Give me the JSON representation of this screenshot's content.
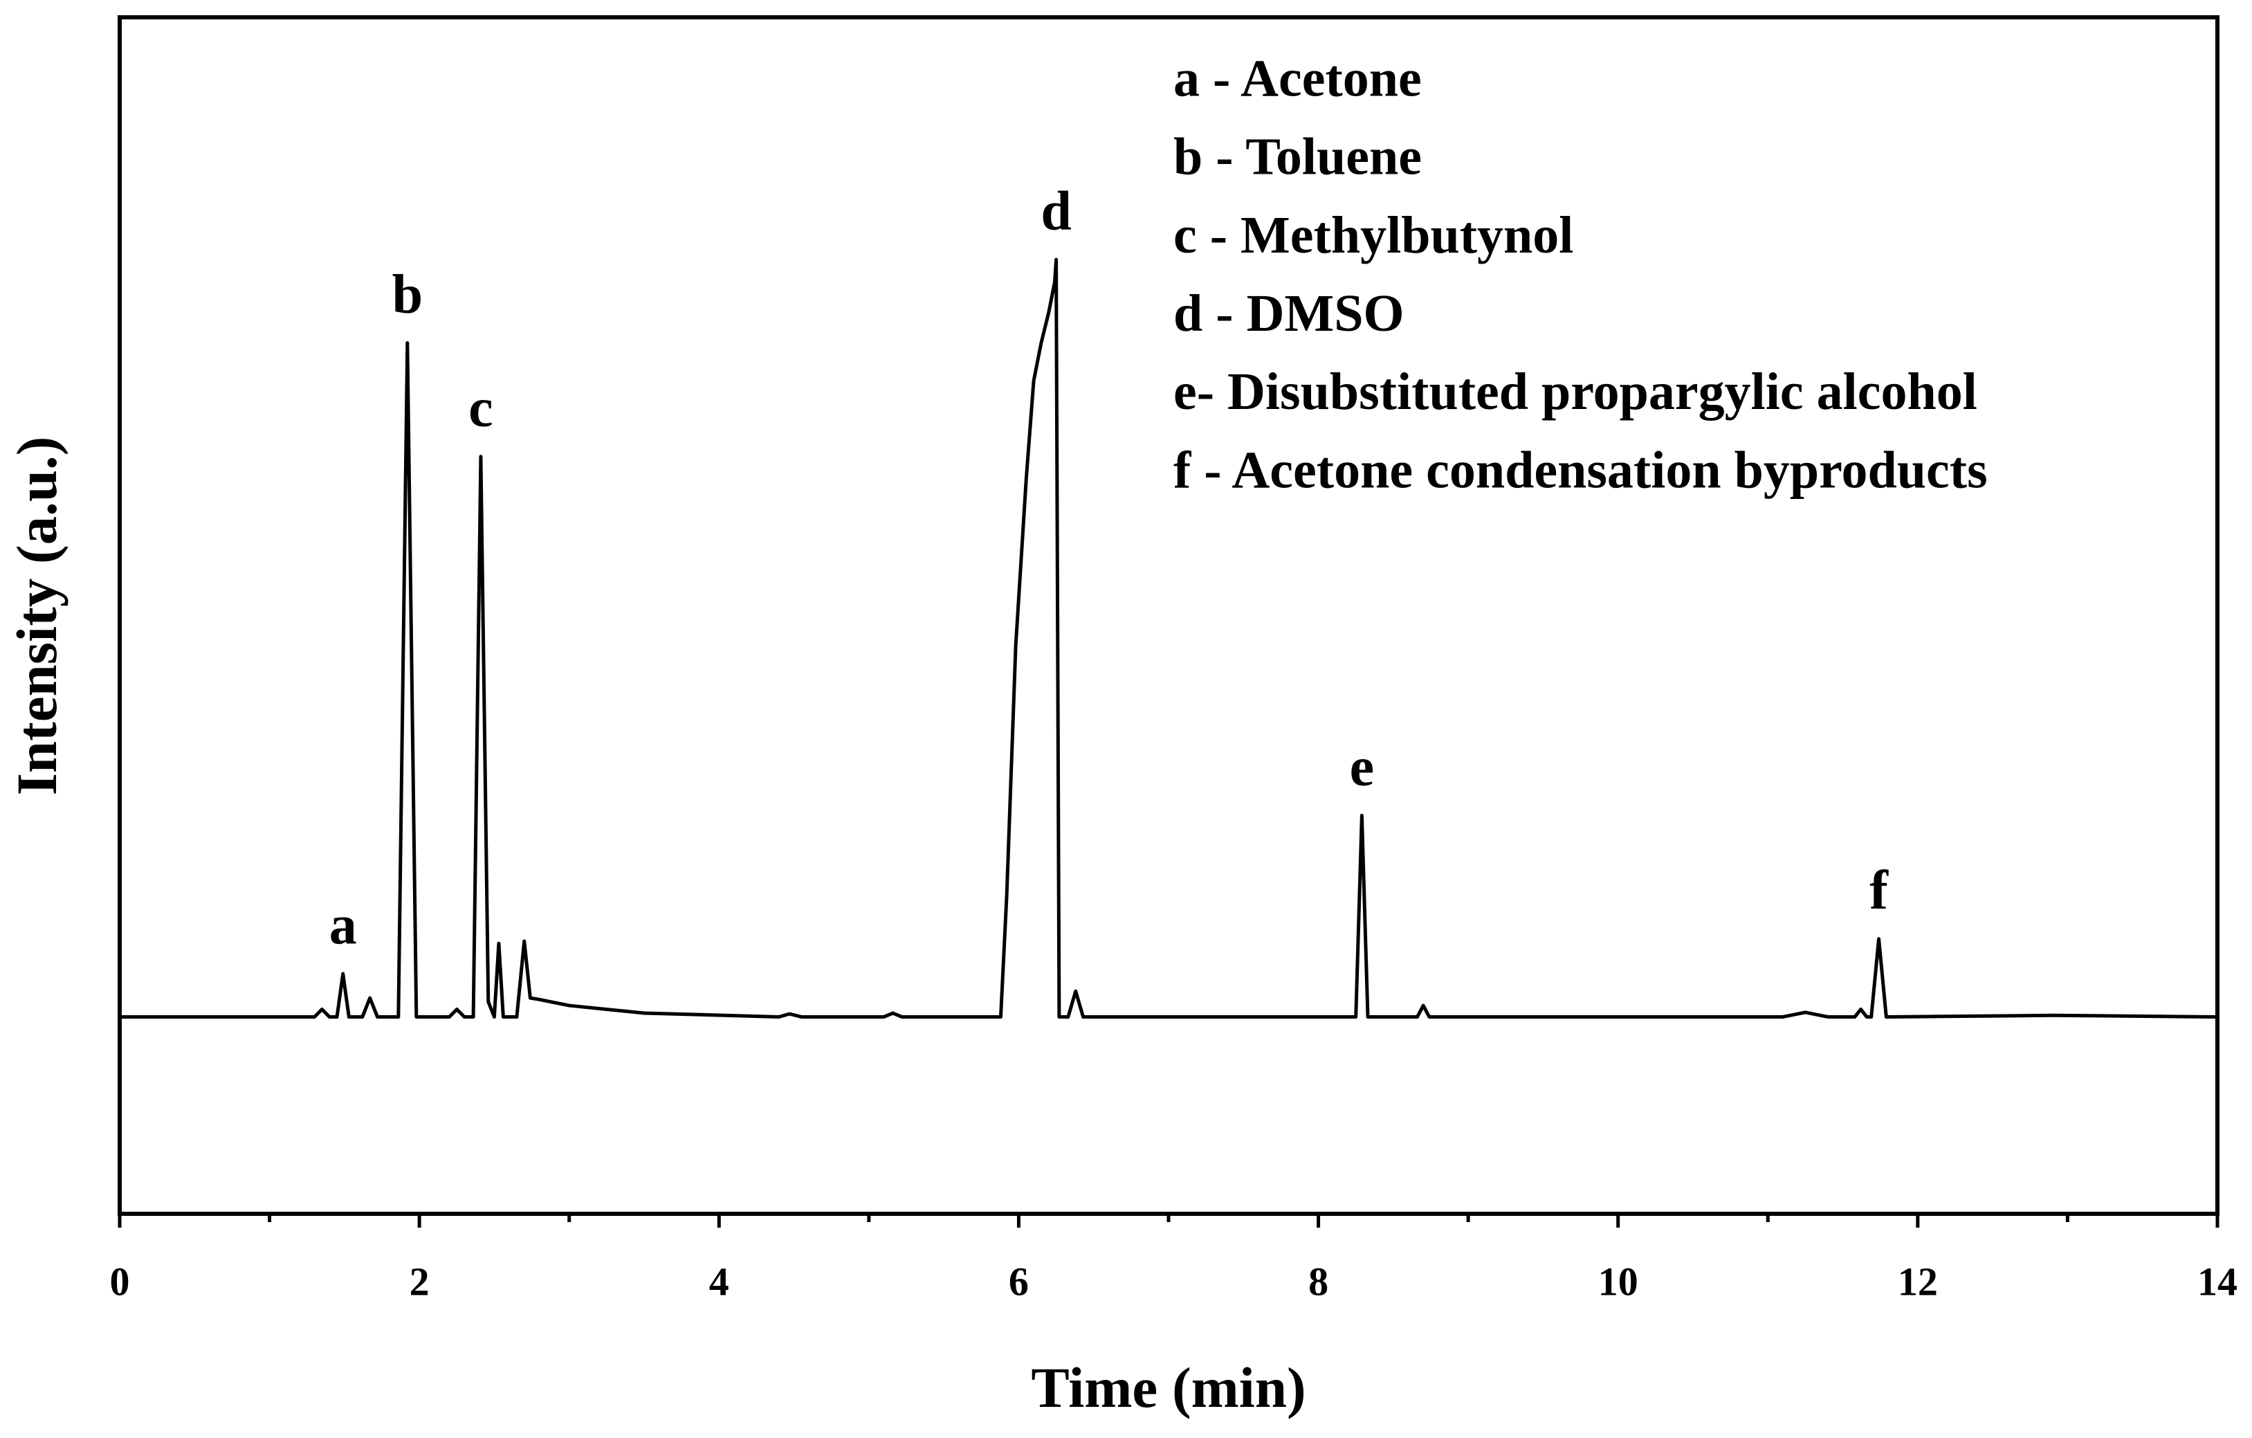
{
  "chart_data": {
    "type": "line",
    "x_label": "Time (min)",
    "y_label": "Intensity (a.u.)",
    "x": [
      0,
      1.3,
      1.35,
      1.4,
      1.45,
      1.49,
      1.53,
      1.62,
      1.67,
      1.72,
      1.86,
      1.92,
      1.98,
      2.2,
      2.25,
      2.3,
      2.36,
      2.41,
      2.46,
      2.5,
      2.53,
      2.56,
      2.65,
      2.7,
      2.74,
      2.8,
      3.0,
      3.5,
      4.4,
      4.47,
      4.55,
      5.1,
      5.16,
      5.22,
      5.85,
      5.88,
      5.92,
      5.98,
      6.05,
      6.1,
      6.15,
      6.2,
      6.24,
      6.25,
      6.27,
      6.33,
      6.38,
      6.43,
      8.2,
      8.25,
      8.29,
      8.33,
      8.66,
      8.7,
      8.74,
      11.1,
      11.25,
      11.4,
      11.58,
      11.62,
      11.66,
      11.69,
      11.74,
      11.79,
      12.9,
      14
    ],
    "values": [
      0,
      0,
      1,
      0,
      0,
      5.7,
      0,
      0,
      2.5,
      0,
      0,
      89,
      0,
      0,
      1,
      0,
      0,
      74,
      2,
      0,
      9.7,
      0,
      0,
      10,
      2.5,
      2.3,
      1.5,
      0.5,
      0,
      0.4,
      0,
      0,
      0.5,
      0,
      0,
      0,
      16,
      49,
      71,
      84,
      89,
      93,
      97,
      100,
      0,
      0,
      3.4,
      0,
      0,
      0,
      26.6,
      0,
      0,
      1.5,
      0,
      0,
      0.6,
      0,
      0,
      1,
      0,
      0,
      10.3,
      0,
      0.2,
      0
    ],
    "color": "#000000",
    "peak_labels": [
      "a",
      "b",
      "c",
      "d",
      "e",
      "f"
    ],
    "legend_entries": [
      "a - Acetone",
      "b - Toluene",
      "c - Methylbutynol",
      "d - DMSO",
      "e- Disubstituted propargylic alcohol",
      "f - Acetone condensation byproducts"
    ],
    "xlim": [
      0,
      14
    ],
    "ylim": [
      -26,
      132
    ],
    "xticks": [
      0,
      2,
      4,
      6,
      8,
      10,
      12,
      14
    ],
    "xminor_ticks": [
      1,
      3,
      5,
      7,
      9,
      11,
      13
    ],
    "grid": false
  }
}
